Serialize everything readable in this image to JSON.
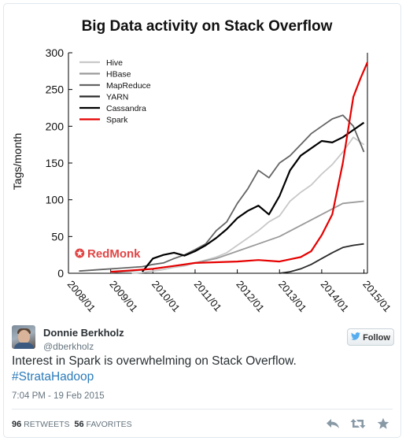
{
  "tweet": {
    "author_name": "Donnie Berkholz",
    "author_handle": "@dberkholz",
    "follow_label": "Follow",
    "text": "Interest in Spark is overwhelming on Stack Overflow.",
    "hashtag": "#StrataHadoop",
    "timestamp": "7:04 PM - 19 Feb 2015",
    "retweets_count": "96",
    "retweets_label": "RETWEETS",
    "favorites_count": "56",
    "favorites_label": "FAVORITES",
    "icons": [
      "reply-icon",
      "retweet-icon",
      "favorite-icon",
      "twitter-bird-icon"
    ]
  },
  "chart_data": {
    "type": "line",
    "title": "Big Data activity on Stack Overflow",
    "xlabel": "",
    "ylabel": "Tags/month",
    "ylim": [
      0,
      300
    ],
    "yticks": [
      0,
      50,
      100,
      150,
      200,
      250,
      300
    ],
    "xlim": [
      "2008-01",
      "2015-02"
    ],
    "xticks": [
      "2008/01",
      "2009/01",
      "2010/01",
      "2011/01",
      "2012/01",
      "2013/01",
      "2014/01",
      "2015/01"
    ],
    "legend_position": "top-left",
    "watermark": "RedMonk",
    "series": [
      {
        "name": "Hive",
        "color": "#c8c8c8",
        "points": [
          [
            "2009-07",
            0
          ],
          [
            "2009-10",
            1
          ],
          [
            "2010-01",
            3
          ],
          [
            "2010-04",
            5
          ],
          [
            "2010-07",
            8
          ],
          [
            "2010-10",
            10
          ],
          [
            "2011-01",
            14
          ],
          [
            "2011-04",
            18
          ],
          [
            "2011-07",
            22
          ],
          [
            "2011-10",
            28
          ],
          [
            "2012-01",
            38
          ],
          [
            "2012-04",
            48
          ],
          [
            "2012-07",
            58
          ],
          [
            "2012-10",
            70
          ],
          [
            "2013-01",
            78
          ],
          [
            "2013-04",
            98
          ],
          [
            "2013-07",
            110
          ],
          [
            "2013-10",
            120
          ],
          [
            "2014-01",
            135
          ],
          [
            "2014-04",
            148
          ],
          [
            "2014-07",
            165
          ],
          [
            "2014-10",
            185
          ],
          [
            "2015-01",
            175
          ]
        ]
      },
      {
        "name": "HBase",
        "color": "#9a9a9a",
        "points": [
          [
            "2009-01",
            1
          ],
          [
            "2009-07",
            3
          ],
          [
            "2010-01",
            6
          ],
          [
            "2010-07",
            10
          ],
          [
            "2011-01",
            14
          ],
          [
            "2011-07",
            20
          ],
          [
            "2012-01",
            30
          ],
          [
            "2012-07",
            40
          ],
          [
            "2013-01",
            50
          ],
          [
            "2013-07",
            65
          ],
          [
            "2014-01",
            80
          ],
          [
            "2014-07",
            95
          ],
          [
            "2015-01",
            98
          ]
        ]
      },
      {
        "name": "MapReduce",
        "color": "#646464",
        "points": [
          [
            "2008-04",
            3
          ],
          [
            "2008-10",
            5
          ],
          [
            "2009-04",
            7
          ],
          [
            "2009-10",
            9
          ],
          [
            "2010-01",
            12
          ],
          [
            "2010-04",
            14
          ],
          [
            "2010-07",
            20
          ],
          [
            "2010-10",
            25
          ],
          [
            "2011-01",
            32
          ],
          [
            "2011-04",
            40
          ],
          [
            "2011-07",
            58
          ],
          [
            "2011-10",
            70
          ],
          [
            "2012-01",
            95
          ],
          [
            "2012-04",
            115
          ],
          [
            "2012-07",
            140
          ],
          [
            "2012-10",
            130
          ],
          [
            "2013-01",
            150
          ],
          [
            "2013-04",
            160
          ],
          [
            "2013-07",
            175
          ],
          [
            "2013-10",
            190
          ],
          [
            "2014-01",
            200
          ],
          [
            "2014-04",
            210
          ],
          [
            "2014-07",
            215
          ],
          [
            "2014-10",
            200
          ],
          [
            "2015-01",
            165
          ]
        ]
      },
      {
        "name": "YARN",
        "color": "#2a2a2a",
        "points": [
          [
            "2013-01",
            0
          ],
          [
            "2013-04",
            2
          ],
          [
            "2013-07",
            6
          ],
          [
            "2013-10",
            12
          ],
          [
            "2014-01",
            20
          ],
          [
            "2014-04",
            28
          ],
          [
            "2014-07",
            35
          ],
          [
            "2014-10",
            38
          ],
          [
            "2015-01",
            40
          ]
        ]
      },
      {
        "name": "Cassandra",
        "color": "#000000",
        "points": [
          [
            "2009-10",
            2
          ],
          [
            "2010-01",
            20
          ],
          [
            "2010-04",
            25
          ],
          [
            "2010-07",
            28
          ],
          [
            "2010-10",
            24
          ],
          [
            "2011-01",
            30
          ],
          [
            "2011-04",
            38
          ],
          [
            "2011-07",
            48
          ],
          [
            "2011-10",
            60
          ],
          [
            "2012-01",
            75
          ],
          [
            "2012-04",
            85
          ],
          [
            "2012-07",
            92
          ],
          [
            "2012-10",
            80
          ],
          [
            "2013-01",
            105
          ],
          [
            "2013-04",
            140
          ],
          [
            "2013-07",
            160
          ],
          [
            "2013-10",
            170
          ],
          [
            "2014-01",
            180
          ],
          [
            "2014-04",
            178
          ],
          [
            "2014-07",
            185
          ],
          [
            "2014-10",
            195
          ],
          [
            "2015-01",
            205
          ]
        ]
      },
      {
        "name": "Spark",
        "color": "#e60000",
        "points": [
          [
            "2009-01",
            2
          ],
          [
            "2009-07",
            4
          ],
          [
            "2010-01",
            6
          ],
          [
            "2010-07",
            10
          ],
          [
            "2011-01",
            14
          ],
          [
            "2011-07",
            15
          ],
          [
            "2012-01",
            16
          ],
          [
            "2012-07",
            18
          ],
          [
            "2013-01",
            16
          ],
          [
            "2013-07",
            22
          ],
          [
            "2013-10",
            30
          ],
          [
            "2014-01",
            52
          ],
          [
            "2014-04",
            80
          ],
          [
            "2014-07",
            150
          ],
          [
            "2014-10",
            240
          ],
          [
            "2014-12",
            265
          ],
          [
            "2015-02",
            287
          ]
        ]
      }
    ]
  }
}
